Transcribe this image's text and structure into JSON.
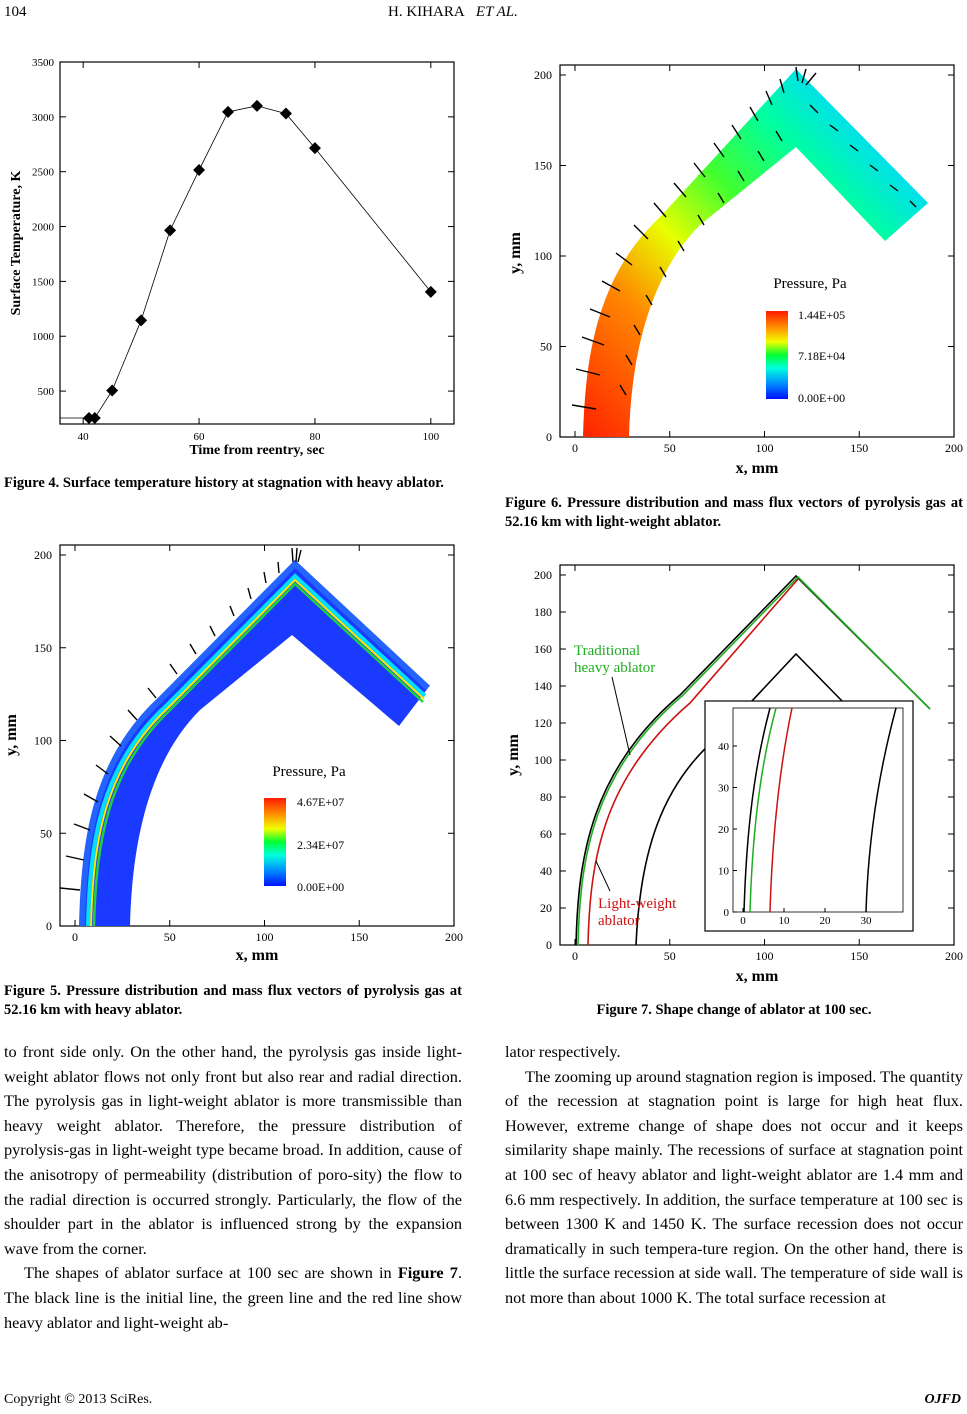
{
  "header": {
    "page_number": "104",
    "authors": "H. KIHARA",
    "et_al": "ET AL."
  },
  "figure4": {
    "caption": "Figure 4. Surface temperature history at stagnation with heavy ablator.",
    "chart_data": {
      "type": "line",
      "title": "",
      "xlabel": "Time from reentry, sec",
      "ylabel": "Surface Temperature, K",
      "xlim": [
        36,
        104
      ],
      "ylim": [
        200,
        3500
      ],
      "xticks": [
        40,
        60,
        80,
        100
      ],
      "yticks": [
        500,
        1000,
        1500,
        2000,
        2500,
        3000,
        3500
      ],
      "x": [
        41,
        42,
        45,
        50,
        55,
        60,
        65,
        70,
        75,
        80,
        100
      ],
      "y": [
        255,
        255,
        505,
        1145,
        1965,
        2515,
        3045,
        3100,
        3030,
        2715,
        1405
      ],
      "marker": "diamond"
    }
  },
  "figure5": {
    "caption": "Figure 5. Pressure distribution and mass flux vectors of pyrolysis gas at 52.16 km with heavy ablator.",
    "xlabel": "x, mm",
    "ylabel": "y, mm",
    "xticks": [
      "0",
      "50",
      "100",
      "150",
      "200"
    ],
    "yticks": [
      "0",
      "50",
      "100",
      "150",
      "200"
    ],
    "legend_title": "Pressure, Pa",
    "legend_values": [
      "4.67E+07",
      "2.34E+07",
      "0.00E+00"
    ]
  },
  "figure6": {
    "caption": "Figure 6. Pressure distribution and mass flux vectors of pyrolysis gas at 52.16 km with light-weight ablator.",
    "xlabel": "x, mm",
    "ylabel": "y, mm",
    "xticks": [
      "0",
      "50",
      "100",
      "150",
      "200"
    ],
    "yticks": [
      "0",
      "50",
      "100",
      "150",
      "200"
    ],
    "legend_title": "Pressure, Pa",
    "legend_values": [
      "1.44E+05",
      "7.18E+04",
      "0.00E+00"
    ]
  },
  "figure7": {
    "caption": "Figure 7. Shape change of ablator at 100 sec.",
    "xlabel": "x, mm",
    "ylabel": "y, mm",
    "xticks": [
      "0",
      "50",
      "100",
      "150",
      "200"
    ],
    "yticks": [
      "0",
      "20",
      "40",
      "60",
      "80",
      "100",
      "120",
      "140",
      "160",
      "180",
      "200"
    ],
    "inset_xticks": [
      "0",
      "10",
      "20",
      "30"
    ],
    "inset_yticks": [
      "0",
      "10",
      "20",
      "30",
      "40"
    ],
    "label_heavy_line1": "Traditional",
    "label_heavy_line2": "heavy ablator",
    "label_light_line1": "Light-weight",
    "label_light_line2": "ablator",
    "colors": {
      "initial": "#000000",
      "heavy": "#1fae1f",
      "light": "#cc1111"
    }
  },
  "left_text": {
    "p1": "to front side only. On the other hand, the pyrolysis gas inside light-weight ablator flows not only front but also rear and radial direction. The pyrolysis gas in light-weight ablator is more transmissible than heavy weight ablator. Therefore, the pressure distribution of pyrolysis-gas in light-weight type became broad. In addition, cause of the anisotropy of permeability (distribution of poro-sity) the flow to the radial direction is occurred strongly. Particularly, the flow of the shoulder part in the ablator is influenced strong by the expansion wave from the corner.",
    "p2_before": "The shapes of ablator surface at 100 sec are shown in ",
    "p2_ref": "Figure 7",
    "p2_after": ". The black line is the initial line, the green line and the red line show heavy ablator and light-weight ab-"
  },
  "right_text": {
    "p1": "lator respectively.",
    "p2": "The zooming up around stagnation region is imposed. The quantity of the recession at stagnation point is large for high heat flux. However, extreme change of shape does not occur and it keeps similarity shape mainly. The recessions of surface at stagnation point at 100 sec of heavy ablator and light-weight ablator are 1.4 mm and 6.6 mm respectively. In addition, the surface temperature at 100 sec is between 1300 K and 1450 K. The surface recession does not occur dramatically in such tempera-ture region. On the other hand, there is little the surface recession at side wall. The temperature of side wall is not more than about 1000 K. The total surface recession at"
  },
  "footer": {
    "copyright": "Copyright © 2013 SciRes.",
    "journal": "OJFD"
  }
}
